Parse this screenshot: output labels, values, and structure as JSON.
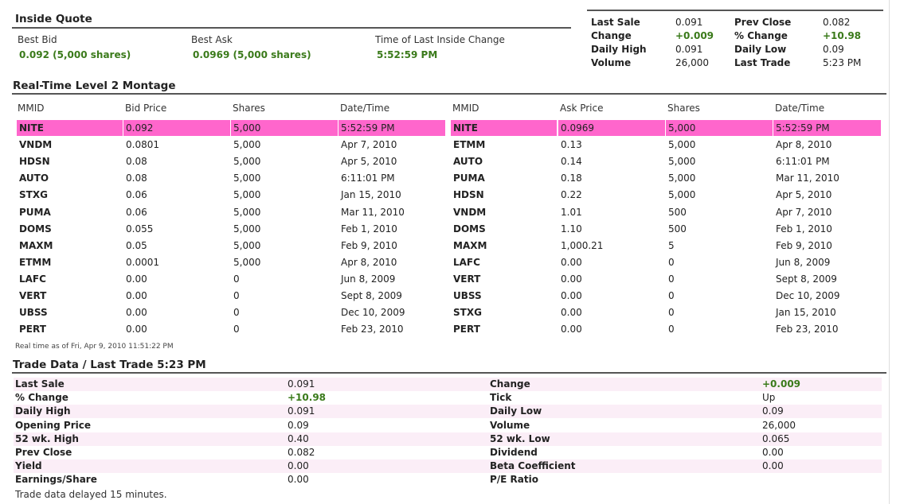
{
  "inside_quote": {
    "title": "Inside Quote",
    "best_bid_label": "Best Bid",
    "best_bid_value": "0.092 (5,000 shares)",
    "best_ask_label": "Best Ask",
    "best_ask_value": "0.0969 (5,000 shares)",
    "time_label": "Time of Last Inside Change",
    "time_value": "5:52:59 PM"
  },
  "summary": {
    "rows": [
      {
        "l1": "Last Sale",
        "v1": "0.091",
        "l2": "Prev Close",
        "v2": "0.082",
        "v1_green": false,
        "v2_green": false
      },
      {
        "l1": "Change",
        "v1": "+0.009",
        "l2": "% Change",
        "v2": "+10.98",
        "v1_green": true,
        "v2_green": true
      },
      {
        "l1": "Daily High",
        "v1": "0.091",
        "l2": "Daily Low",
        "v2": "0.09",
        "v1_green": false,
        "v2_green": false
      },
      {
        "l1": "Volume",
        "v1": "26,000",
        "l2": "Last Trade",
        "v2": "5:23 PM",
        "v1_green": false,
        "v2_green": false
      }
    ]
  },
  "montage": {
    "title": "Real-Time Level 2 Montage",
    "headers": [
      "MMID",
      "Bid Price",
      "Shares",
      "Date/Time",
      "MMID",
      "Ask Price",
      "Shares",
      "Date/Time"
    ],
    "rows": [
      [
        "NITE",
        "0.092",
        "5,000",
        "5:52:59 PM",
        "NITE",
        "0.0969",
        "5,000",
        "5:52:59 PM"
      ],
      [
        "VNDM",
        "0.0801",
        "5,000",
        "Apr 7, 2010",
        "ETMM",
        "0.13",
        "5,000",
        "Apr 8, 2010"
      ],
      [
        "HDSN",
        "0.08",
        "5,000",
        "Apr 5, 2010",
        "AUTO",
        "0.14",
        "5,000",
        "6:11:01 PM"
      ],
      [
        "AUTO",
        "0.08",
        "5,000",
        "6:11:01 PM",
        "PUMA",
        "0.18",
        "5,000",
        "Mar 11, 2010"
      ],
      [
        "STXG",
        "0.06",
        "5,000",
        "Jan 15, 2010",
        "HDSN",
        "0.22",
        "5,000",
        "Apr 5, 2010"
      ],
      [
        "PUMA",
        "0.06",
        "5,000",
        "Mar 11, 2010",
        "VNDM",
        "1.01",
        "500",
        "Apr 7, 2010"
      ],
      [
        "DOMS",
        "0.055",
        "5,000",
        "Feb 1, 2010",
        "DOMS",
        "1.10",
        "500",
        "Feb 1, 2010"
      ],
      [
        "MAXM",
        "0.05",
        "5,000",
        "Feb 9, 2010",
        "MAXM",
        "1,000.21",
        "5",
        "Feb 9, 2010"
      ],
      [
        "ETMM",
        "0.0001",
        "5,000",
        "Apr 8, 2010",
        "LAFC",
        "0.00",
        "0",
        "Jun 8, 2009"
      ],
      [
        "LAFC",
        "0.00",
        "0",
        "Jun 8, 2009",
        "VERT",
        "0.00",
        "0",
        "Sept 8, 2009"
      ],
      [
        "VERT",
        "0.00",
        "0",
        "Sept 8, 2009",
        "UBSS",
        "0.00",
        "0",
        "Dec 10, 2009"
      ],
      [
        "UBSS",
        "0.00",
        "0",
        "Dec 10, 2009",
        "STXG",
        "0.00",
        "0",
        "Jan 15, 2010"
      ],
      [
        "PERT",
        "0.00",
        "0",
        "Feb 23, 2010",
        "PERT",
        "0.00",
        "0",
        "Feb 23, 2010"
      ]
    ],
    "highlight_color": "#ff66cc",
    "timestamp_note": "Real time as of Fri, Apr 9, 2010 11:51:22 PM"
  },
  "trade": {
    "title": "Trade Data / Last Trade 5:23 PM",
    "rows": [
      {
        "l1": "Last Sale",
        "v1": "0.091",
        "l2": "Change",
        "v2": "+0.009",
        "v1_green": false,
        "v2_green": true
      },
      {
        "l1": "% Change",
        "v1": "+10.98",
        "l2": "Tick",
        "v2": "Up",
        "v1_green": true,
        "v2_green": false
      },
      {
        "l1": "Daily High",
        "v1": "0.091",
        "l2": "Daily Low",
        "v2": "0.09",
        "v1_green": false,
        "v2_green": false
      },
      {
        "l1": "Opening Price",
        "v1": "0.09",
        "l2": "Volume",
        "v2": "26,000",
        "v1_green": false,
        "v2_green": false
      },
      {
        "l1": "52 wk. High",
        "v1": "0.40",
        "l2": "52 wk. Low",
        "v2": "0.065",
        "v1_green": false,
        "v2_green": false
      },
      {
        "l1": "Prev Close",
        "v1": "0.082",
        "l2": "Dividend",
        "v2": "0.00",
        "v1_green": false,
        "v2_green": false
      },
      {
        "l1": "Yield",
        "v1": "0.00",
        "l2": "Beta Coefficient",
        "v2": "0.00",
        "v1_green": false,
        "v2_green": false
      },
      {
        "l1": "Earnings/Share",
        "v1": "0.00",
        "l2": "P/E Ratio",
        "v2": "",
        "v1_green": false,
        "v2_green": false
      }
    ],
    "note": "Trade data delayed 15 minutes."
  },
  "colors": {
    "green": "#3a7a1a",
    "highlight": "#ff66cc",
    "alt_row": "#fbeef7"
  }
}
